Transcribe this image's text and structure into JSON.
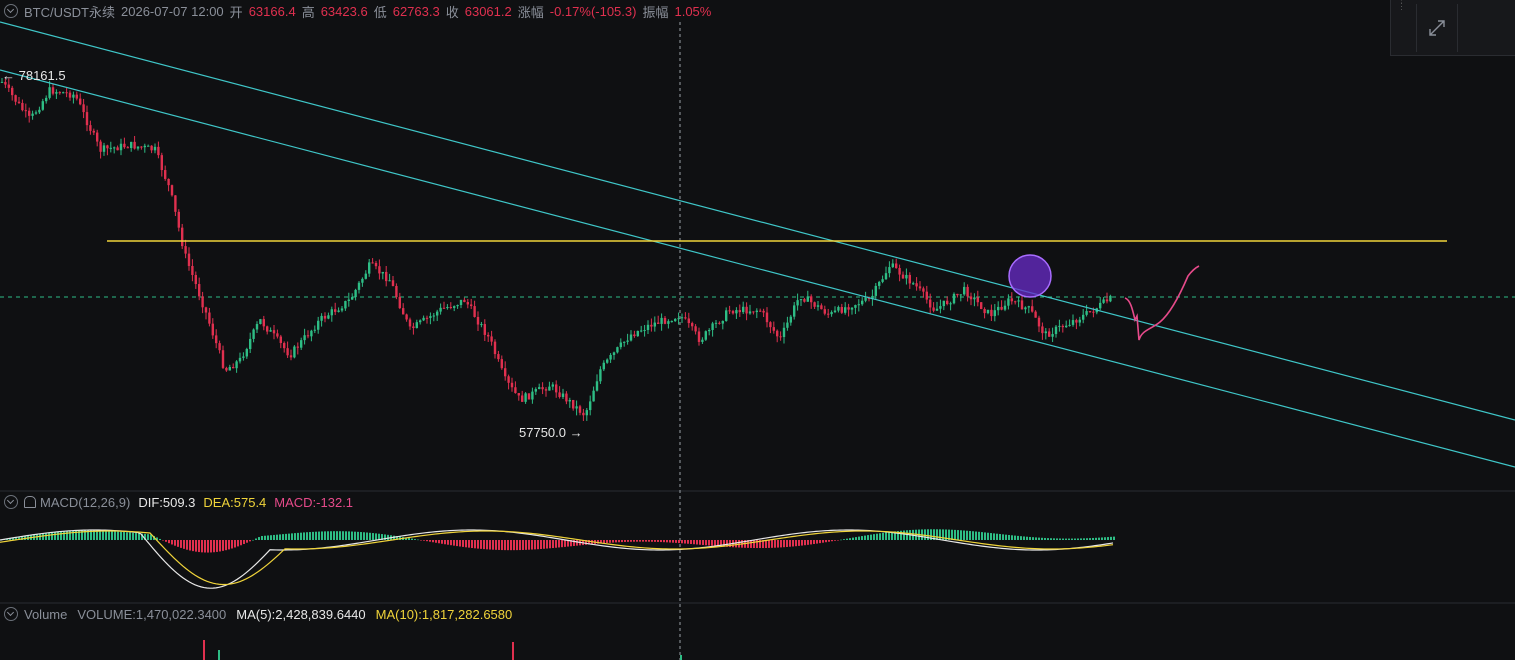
{
  "header": {
    "symbol": "BTC/USDT永续",
    "datetime": "2026-07-07 12:00",
    "open_label": "开",
    "open": "63166.4",
    "high_label": "高",
    "high": "63423.6",
    "low_label": "低",
    "low": "62763.3",
    "close_label": "收",
    "close": "63061.2",
    "change_label": "涨幅",
    "change": "-0.17%(-105.3)",
    "amplitude_label": "振幅",
    "amplitude": "1.05%"
  },
  "price_labels": {
    "high_marker": "← 78161.5",
    "low_marker": "57750.0 →"
  },
  "macd": {
    "title": "MACD(12,26,9)",
    "dif": "DIF:509.3",
    "dea": "DEA:575.4",
    "macd": "MACD:-132.1"
  },
  "volume": {
    "title": "Volume",
    "volume": "VOLUME:1,470,022.3400",
    "ma5": "MA(5):2,428,839.6440",
    "ma10": "MA(10):1,817,282.6580"
  },
  "toolbar": {
    "expand_icon": "expand-diagonal-icon",
    "grip_icon": "grip-dots-icon"
  },
  "colors": {
    "up": "#e0304f",
    "down": "#2ebd85",
    "trendline": "#3fc6c8",
    "horizontal": "#f0d43a",
    "annotation": "#e64a8a",
    "circle": "#8a3cf0"
  }
}
